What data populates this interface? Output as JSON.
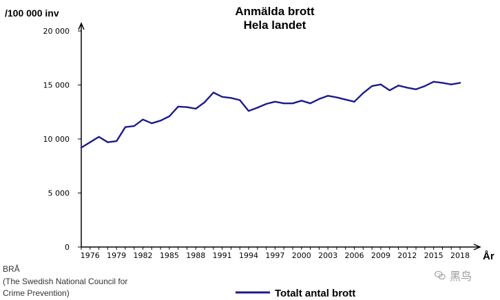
{
  "chart_data": {
    "type": "line",
    "title": "Anmälda brott",
    "subtitle": "Hela landet",
    "ylabel": "/100 000 inv",
    "xlabel": "År",
    "ylim": [
      0,
      20000
    ],
    "xlim": [
      1975,
      2019
    ],
    "yticks": [
      0,
      5000,
      10000,
      15000,
      20000
    ],
    "ytick_labels": [
      "0",
      "5 000",
      "10 000",
      "15 000",
      "20 000"
    ],
    "xticks": [
      1976,
      1979,
      1982,
      1985,
      1988,
      1991,
      1994,
      1997,
      2000,
      2003,
      2006,
      2009,
      2012,
      2015,
      2018
    ],
    "grid": false,
    "legend_position": "bottom-center",
    "series": [
      {
        "name": "Totalt antal brott",
        "color": "#1a1a8c",
        "x": [
          1975,
          1976,
          1977,
          1978,
          1979,
          1980,
          1981,
          1982,
          1983,
          1984,
          1985,
          1986,
          1987,
          1988,
          1989,
          1990,
          1991,
          1992,
          1993,
          1994,
          1995,
          1996,
          1997,
          1998,
          1999,
          2000,
          2001,
          2002,
          2003,
          2004,
          2005,
          2006,
          2007,
          2008,
          2009,
          2010,
          2011,
          2012,
          2013,
          2014,
          2015,
          2016,
          2017,
          2018
        ],
        "y": [
          9200,
          9700,
          10200,
          9700,
          9800,
          11100,
          11200,
          11800,
          11450,
          11700,
          12100,
          13000,
          12950,
          12800,
          13400,
          14300,
          13900,
          13800,
          13600,
          12600,
          12900,
          13250,
          13450,
          13300,
          13300,
          13550,
          13300,
          13700,
          14000,
          13850,
          13650,
          13450,
          14250,
          14900,
          15050,
          14500,
          14950,
          14750,
          14600,
          14900,
          15300,
          15200,
          15050,
          15200
        ]
      }
    ]
  },
  "source": {
    "line1": "BRÅ",
    "line2": "(The Swedish National Council for",
    "line3": "Crime Prevention)"
  },
  "watermark": {
    "text": "黑鸟",
    "icon": "wechat-icon"
  }
}
